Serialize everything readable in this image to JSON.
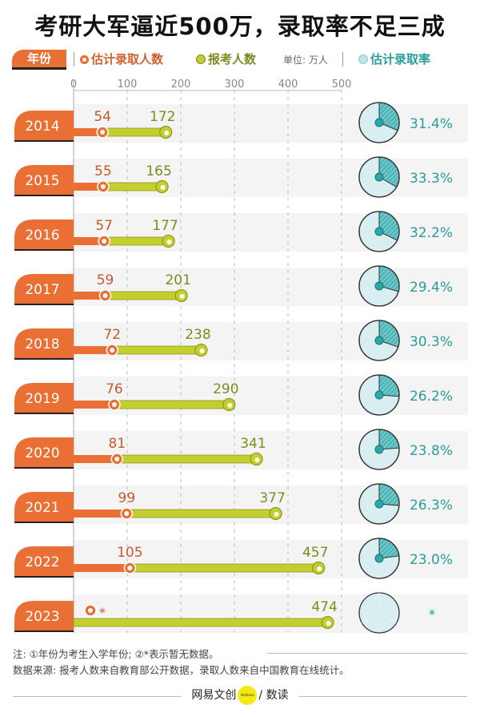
{
  "title": "考研大军逼近500万，录取率不足三成",
  "legend": {
    "year_label": "年份",
    "admitted_label": "估计录取人数",
    "applicants_label": "报考人数",
    "unit_label": "单位: 万人",
    "rate_label": "估计录取率"
  },
  "colors": {
    "admitted": "#e96f34",
    "applicants": "#c4cf2f",
    "applicants_text": "#7f8a1e",
    "rate": "#2a9c9c",
    "pie_fill": "#d9eef1",
    "row_bg": "#f4f4f4"
  },
  "chart_data": {
    "type": "dumbbell",
    "title": "考研大军逼近500万，录取率不足三成",
    "unit": "万人",
    "xlim": [
      0,
      500
    ],
    "ticks": [
      "0",
      "100",
      "200",
      "300",
      "400",
      "500"
    ],
    "tick_values": [
      0,
      100,
      200,
      300,
      400,
      500
    ],
    "categories": [
      "2014",
      "2015",
      "2016",
      "2017",
      "2018",
      "2019",
      "2020",
      "2021",
      "2022",
      "2023"
    ],
    "series": [
      {
        "name": "估计录取人数",
        "values": [
          54,
          55,
          57,
          59,
          72,
          76,
          81,
          99,
          105,
          null
        ],
        "labels": [
          "54",
          "55",
          "57",
          "59",
          "72",
          "76",
          "81",
          "99",
          "105",
          "*"
        ]
      },
      {
        "name": "报考人数",
        "values": [
          172,
          165,
          177,
          201,
          238,
          290,
          341,
          377,
          457,
          474
        ],
        "labels": [
          "172",
          "165",
          "177",
          "201",
          "238",
          "290",
          "341",
          "377",
          "457",
          "474"
        ]
      },
      {
        "name": "估计录取率",
        "values": [
          31.4,
          33.3,
          32.2,
          29.4,
          30.3,
          26.2,
          23.8,
          26.3,
          23.0,
          null
        ],
        "labels": [
          "31.4%",
          "33.3%",
          "32.2%",
          "29.4%",
          "30.3%",
          "26.2%",
          "23.8%",
          "26.3%",
          "23.0%",
          "*"
        ]
      }
    ]
  },
  "notes": {
    "note1": "注: ①年份为考生入学年份; ②*表示暂无数据。",
    "source": "数据来源: 报考人数来自教育部公开数据，录取人数来自中国教育在线统计。"
  },
  "footer": {
    "brand_left": "网易文创",
    "brand_logo_text": "NetEase",
    "brand_right": "/ 数读"
  }
}
